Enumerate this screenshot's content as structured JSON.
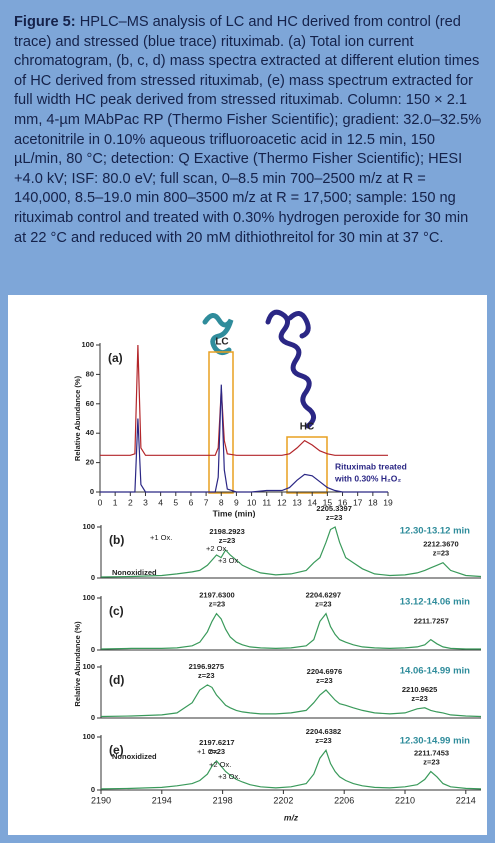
{
  "caption": {
    "label": "Figure 5:",
    "text": "HPLC–MS analysis of LC and HC derived from control (red trace) and stressed (blue trace) rituximab. (a) Total ion current chromatogram, (b, c, d) mass spectra extracted at different elution times of HC derived from stressed rituximab, (e) mass spectrum extracted for full width HC peak derived from stressed rituximab. Column: 150 × 2.1 mm, 4-µm MAbPac RP (Thermo Fisher Scientific); gradient: 32.0–32.5% acetonitrile in 0.10% aqueous trifluoroacetic acid in 12.5 min, 150 µL/min, 80 °C; detection: Q Exactive (Thermo Fisher Scientific); HESI +4.0 kV; ISF: 80.0 eV; full scan, 0–8.5 min 700–2500 m/z at R = 140,000, 8.5–19.0 min 800–3500 m/z at R = 17,500; sample: 150 ng rituximab control and treated with 0.30% hydrogen peroxide for 30 min at 22 °C and reduced with 20 mM dithiothreitol for 30 min at 37 °C."
  },
  "chart_data": [
    {
      "type": "line",
      "panel_label": "(a)",
      "y_label": "Relative Abundance (%)",
      "x_label": "Time (min)",
      "annotations": [
        "LC",
        "HC",
        "Rituximab treated",
        "with 0.30% H₂O₂"
      ],
      "x": [
        0,
        1,
        2,
        2.3,
        2.5,
        2.7,
        3,
        4,
        5,
        6,
        7,
        7.6,
        7.8,
        8,
        8.2,
        8.4,
        9,
        10,
        11,
        12,
        12.5,
        13,
        13.5,
        14,
        14.5,
        15,
        15.5,
        16,
        17,
        18,
        19
      ],
      "series": [
        {
          "color": "#b3262a",
          "values": [
            25,
            25,
            25,
            26,
            100,
            30,
            25,
            25,
            25,
            25,
            25,
            25,
            30,
            70,
            35,
            26,
            25,
            25,
            25,
            25,
            26,
            30,
            35,
            32,
            28,
            26,
            25,
            25,
            25,
            25,
            25
          ]
        },
        {
          "color": "#2b2785",
          "values": [
            0,
            0,
            0,
            0,
            50,
            5,
            0,
            0,
            0,
            0,
            0,
            0,
            10,
            73,
            15,
            2,
            0,
            0,
            1,
            1,
            3,
            8,
            12,
            11,
            7,
            3,
            1,
            0,
            0,
            0,
            0
          ]
        }
      ],
      "xlim": [
        0,
        19
      ],
      "xticks": [
        0,
        1,
        2,
        3,
        4,
        5,
        6,
        7,
        8,
        9,
        10,
        11,
        12,
        13,
        14,
        15,
        16,
        17,
        18,
        19
      ],
      "ylim": [
        0,
        100
      ],
      "yticks": [
        0,
        20,
        40,
        60,
        80,
        100
      ]
    },
    {
      "type": "spectrum",
      "panel_label": "(b)",
      "range_label": "12.30-13.12 min",
      "annotations": [
        "+1 Ox.",
        "+2 Ox.",
        "+3 Ox.",
        "Nonoxidized"
      ],
      "peak_labels": [
        {
          "mz": "2198.2923",
          "charge": "z=23"
        },
        {
          "mz": "2205.3397",
          "charge": "z=23"
        },
        {
          "mz": "2212.3670",
          "charge": "z=23"
        }
      ],
      "x": [
        2190,
        2192,
        2194,
        2195,
        2196,
        2196.5,
        2197,
        2197.3,
        2197.6,
        2197.9,
        2198.2,
        2198.5,
        2198.9,
        2199.3,
        2199.8,
        2200.5,
        2201.5,
        2202.5,
        2203.5,
        2204,
        2204.4,
        2204.8,
        2205.1,
        2205.4,
        2205.7,
        2206.1,
        2206.6,
        2207.2,
        2208,
        2209,
        2210,
        2210.8,
        2211.3,
        2211.7,
        2212.1,
        2212.5,
        2213,
        2214,
        2215
      ],
      "series": [
        {
          "color": "#3a9a5b",
          "values": [
            2,
            3,
            5,
            8,
            12,
            15,
            25,
            35,
            45,
            40,
            55,
            45,
            35,
            25,
            18,
            10,
            6,
            8,
            15,
            30,
            40,
            70,
            95,
            100,
            70,
            40,
            30,
            18,
            8,
            5,
            6,
            10,
            15,
            20,
            25,
            30,
            15,
            5,
            3
          ]
        }
      ],
      "xlim": [
        2190,
        2215
      ],
      "ylim": [
        0,
        100
      ],
      "yticks": [
        0,
        100
      ]
    },
    {
      "type": "spectrum",
      "panel_label": "(c)",
      "range_label": "13.12-14.06 min",
      "y_label": "Relative Abundance (%)",
      "peak_labels": [
        {
          "mz": "2197.6300",
          "charge": "z=23"
        },
        {
          "mz": "2204.6297",
          "charge": "z=23"
        },
        {
          "mz": "2211.7257"
        }
      ],
      "x": [
        2190,
        2192,
        2194,
        2195,
        2196,
        2196.5,
        2197,
        2197.3,
        2197.6,
        2197.9,
        2198.2,
        2198.5,
        2198.9,
        2199.3,
        2199.8,
        2200.5,
        2201.5,
        2202.5,
        2203.5,
        2204,
        2204.4,
        2204.8,
        2205.1,
        2205.4,
        2205.7,
        2206.1,
        2206.6,
        2207.2,
        2208,
        2209,
        2210,
        2210.8,
        2211.3,
        2211.7,
        2212.1,
        2212.5,
        2213,
        2214,
        2215
      ],
      "series": [
        {
          "color": "#3a9a5b",
          "values": [
            2,
            3,
            3,
            4,
            8,
            15,
            35,
            55,
            70,
            60,
            40,
            25,
            15,
            10,
            6,
            4,
            3,
            4,
            8,
            20,
            55,
            70,
            45,
            30,
            20,
            15,
            10,
            6,
            4,
            3,
            4,
            6,
            10,
            20,
            12,
            6,
            3,
            2,
            2
          ]
        }
      ],
      "xlim": [
        2190,
        2215
      ],
      "ylim": [
        0,
        100
      ],
      "yticks": [
        0,
        100
      ]
    },
    {
      "type": "spectrum",
      "panel_label": "(d)",
      "range_label": "14.06-14.99 min",
      "peak_labels": [
        {
          "mz": "2196.9275",
          "charge": "z=23"
        },
        {
          "mz": "2204.6976",
          "charge": "z=23"
        },
        {
          "mz": "2210.9625",
          "charge": "z=23"
        }
      ],
      "x": [
        2190,
        2192,
        2194,
        2195,
        2196,
        2196.5,
        2197,
        2197.3,
        2197.6,
        2197.9,
        2198.2,
        2198.5,
        2198.9,
        2199.3,
        2199.8,
        2200.5,
        2201.5,
        2202.5,
        2203.5,
        2204,
        2204.4,
        2204.8,
        2205.1,
        2205.4,
        2205.7,
        2206.1,
        2206.6,
        2207.2,
        2208,
        2209,
        2210,
        2210.8,
        2211.3,
        2211.7,
        2212.1,
        2212.5,
        2213,
        2214,
        2215
      ],
      "series": [
        {
          "color": "#3a9a5b",
          "values": [
            3,
            4,
            6,
            10,
            30,
            55,
            65,
            60,
            45,
            35,
            25,
            20,
            15,
            12,
            10,
            8,
            8,
            10,
            15,
            30,
            45,
            55,
            45,
            35,
            28,
            25,
            20,
            15,
            10,
            8,
            10,
            18,
            20,
            15,
            12,
            10,
            6,
            4,
            3
          ]
        }
      ],
      "xlim": [
        2190,
        2215
      ],
      "ylim": [
        0,
        100
      ],
      "yticks": [
        0,
        100
      ]
    },
    {
      "type": "spectrum",
      "panel_label": "(e)",
      "range_label": "12.30-14.99 min",
      "x_label": "m/z",
      "annotations": [
        "+1 Ox.",
        "+2 Ox.",
        "+3 Ox.",
        "Nonoxidized"
      ],
      "peak_labels": [
        {
          "mz": "2197.6217",
          "charge": "z=23"
        },
        {
          "mz": "2204.6382",
          "charge": "z=23"
        },
        {
          "mz": "2211.7453",
          "charge": "z=23"
        }
      ],
      "x": [
        2190,
        2192,
        2194,
        2195,
        2196,
        2196.5,
        2197,
        2197.3,
        2197.6,
        2197.9,
        2198.2,
        2198.5,
        2198.9,
        2199.3,
        2199.8,
        2200.5,
        2201.5,
        2202.5,
        2203.5,
        2204,
        2204.4,
        2204.8,
        2205.1,
        2205.4,
        2205.7,
        2206.1,
        2206.6,
        2207.2,
        2208,
        2209,
        2210,
        2210.8,
        2211.3,
        2211.7,
        2212.1,
        2212.5,
        2213,
        2214,
        2215
      ],
      "series": [
        {
          "color": "#3a9a5b",
          "values": [
            2,
            3,
            5,
            8,
            12,
            18,
            30,
            45,
            55,
            45,
            35,
            28,
            20,
            15,
            10,
            6,
            4,
            6,
            12,
            30,
            60,
            75,
            50,
            35,
            25,
            18,
            12,
            8,
            5,
            4,
            6,
            10,
            20,
            35,
            25,
            12,
            6,
            3,
            2
          ]
        }
      ],
      "xlim": [
        2190,
        2215
      ],
      "xticks": [
        2190,
        2194,
        2198,
        2202,
        2206,
        2210,
        2214
      ],
      "ylim": [
        0,
        100
      ],
      "yticks": [
        0,
        100
      ]
    }
  ]
}
